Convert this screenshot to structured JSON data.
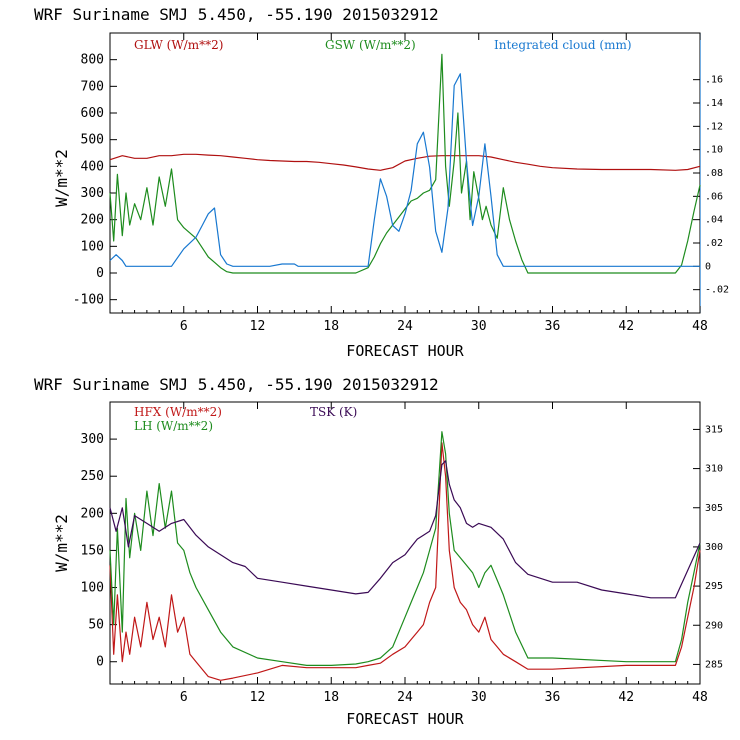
{
  "chart_data": [
    {
      "type": "line",
      "title": "WRF  Suriname SMJ   5.450, -55.190  2015032912",
      "xlabel": "FORECAST HOUR",
      "ylabel": "W/m**2",
      "xlim": [
        0,
        48
      ],
      "ylim": [
        -150,
        900
      ],
      "x_ticks": [
        6,
        12,
        18,
        24,
        30,
        36,
        42,
        48
      ],
      "y_ticks": [
        -100,
        0,
        100,
        200,
        300,
        400,
        500,
        600,
        700,
        800
      ],
      "y2lim": [
        -0.04,
        0.2
      ],
      "y2_ticks": [
        -0.02,
        0,
        0.02,
        0.04,
        0.06,
        0.08,
        0.1,
        0.12,
        0.14,
        0.16
      ],
      "y2_tick_labels": [
        "-.02",
        "0",
        ".02",
        ".04",
        ".06",
        ".08",
        ".10",
        ".12",
        ".14",
        ".16"
      ],
      "series": [
        {
          "name": "GLW (W/m**2)",
          "color": "#b01010",
          "axis": "left",
          "x": [
            0,
            1,
            2,
            3,
            4,
            5,
            6,
            7,
            8,
            9,
            10,
            11,
            12,
            13,
            14,
            15,
            16,
            17,
            18,
            19,
            20,
            21,
            22,
            23,
            24,
            25,
            26,
            27,
            28,
            29,
            30,
            31,
            32,
            33,
            34,
            35,
            36,
            38,
            40,
            42,
            44,
            46,
            47,
            48
          ],
          "values": [
            425,
            440,
            430,
            430,
            440,
            440,
            445,
            445,
            442,
            440,
            435,
            430,
            425,
            422,
            420,
            418,
            418,
            415,
            410,
            405,
            398,
            390,
            385,
            395,
            420,
            430,
            438,
            440,
            440,
            440,
            440,
            435,
            425,
            415,
            408,
            400,
            395,
            390,
            388,
            388,
            388,
            385,
            388,
            400
          ]
        },
        {
          "name": "GSW (W/m**2)",
          "color": "#1e8c1e",
          "axis": "left",
          "x": [
            0,
            0.3,
            0.6,
            1,
            1.3,
            1.6,
            2,
            2.5,
            3,
            3.5,
            4,
            4.5,
            5,
            5.5,
            6,
            7,
            8,
            8.5,
            9,
            9.5,
            10,
            20,
            21,
            21.5,
            22,
            22.5,
            23,
            23.5,
            24,
            24.5,
            25,
            25.5,
            26,
            26.5,
            27,
            27.3,
            27.6,
            28,
            28.3,
            28.6,
            29,
            29.3,
            29.6,
            30,
            30.3,
            30.6,
            31,
            31.5,
            32,
            32.5,
            33,
            33.5,
            34,
            34.5,
            46,
            46.5,
            47,
            47.5,
            48
          ],
          "values": [
            300,
            120,
            370,
            140,
            300,
            180,
            260,
            200,
            320,
            180,
            360,
            250,
            390,
            200,
            170,
            130,
            60,
            40,
            20,
            5,
            0,
            0,
            20,
            60,
            110,
            150,
            180,
            210,
            240,
            270,
            280,
            300,
            310,
            350,
            820,
            400,
            250,
            420,
            600,
            300,
            420,
            200,
            380,
            280,
            200,
            250,
            180,
            130,
            320,
            200,
            120,
            50,
            0,
            0,
            0,
            30,
            120,
            230,
            330
          ]
        },
        {
          "name": "Integrated cloud (mm)",
          "color": "#1878d0",
          "axis": "right",
          "x": [
            0,
            0.5,
            1,
            1.3,
            1.6,
            2,
            5,
            6,
            7,
            7.5,
            8,
            8.5,
            9,
            9.5,
            10,
            13,
            14,
            15,
            15.3,
            21,
            21.5,
            22,
            22.5,
            23,
            23.5,
            24,
            24.5,
            25,
            25.5,
            26,
            26.5,
            27,
            27.5,
            28,
            28.5,
            29,
            29.5,
            30,
            30.5,
            31,
            31.5,
            32,
            48
          ],
          "values": [
            0.005,
            0.01,
            0.005,
            0,
            0,
            0,
            0,
            0.015,
            0.025,
            0.035,
            0.045,
            0.05,
            0.01,
            0.002,
            0,
            0,
            0.002,
            0.002,
            0,
            0,
            0.04,
            0.075,
            0.06,
            0.035,
            0.03,
            0.045,
            0.065,
            0.105,
            0.115,
            0.085,
            0.03,
            0.012,
            0.05,
            0.155,
            0.165,
            0.09,
            0.035,
            0.06,
            0.105,
            0.06,
            0.01,
            0,
            0
          ]
        }
      ],
      "legend": [
        "GLW (W/m**2)",
        "GSW (W/m**2)",
        "Integrated cloud (mm)"
      ]
    },
    {
      "type": "line",
      "title": "WRF  Suriname SMJ   5.450, -55.190  2015032912",
      "xlabel": "FORECAST HOUR",
      "ylabel": "W/m**2",
      "xlim": [
        0,
        48
      ],
      "ylim": [
        -30,
        350
      ],
      "x_ticks": [
        6,
        12,
        18,
        24,
        30,
        36,
        42,
        48
      ],
      "y_ticks": [
        0,
        50,
        100,
        150,
        200,
        250,
        300
      ],
      "y2lim": [
        282.5,
        318.5
      ],
      "y2_ticks": [
        285,
        290,
        295,
        300,
        305,
        310,
        315
      ],
      "y2_tick_labels": [
        "285",
        "290",
        "295",
        "300",
        "305",
        "310",
        "315"
      ],
      "series": [
        {
          "name": "HFX (W/m**2)",
          "color": "#c01818",
          "axis": "left",
          "x": [
            0,
            0.3,
            0.6,
            1,
            1.3,
            1.6,
            2,
            2.5,
            3,
            3.5,
            4,
            4.5,
            5,
            5.5,
            6,
            6.5,
            7,
            8,
            9,
            10,
            12,
            14,
            16,
            18,
            20,
            21,
            22,
            23,
            24,
            24.5,
            25,
            25.5,
            26,
            26.5,
            27,
            27.3,
            27.6,
            28,
            28.5,
            29,
            29.5,
            30,
            30.5,
            31,
            31.5,
            32,
            33,
            34,
            36,
            42,
            46,
            46.5,
            47,
            47.5,
            48
          ],
          "values": [
            130,
            10,
            90,
            0,
            40,
            10,
            60,
            20,
            80,
            30,
            60,
            20,
            90,
            40,
            60,
            10,
            0,
            -20,
            -25,
            -22,
            -15,
            -5,
            -8,
            -8,
            -8,
            -5,
            -2,
            10,
            20,
            30,
            40,
            50,
            80,
            100,
            295,
            250,
            150,
            100,
            80,
            70,
            50,
            40,
            60,
            30,
            20,
            10,
            0,
            -10,
            -10,
            -5,
            -5,
            20,
            60,
            100,
            150
          ]
        },
        {
          "name": "LH (W/m**2)",
          "color": "#1e8c1e",
          "axis": "left",
          "x": [
            0,
            0.3,
            0.6,
            1,
            1.3,
            1.6,
            2,
            2.5,
            3,
            3.5,
            4,
            4.5,
            5,
            5.5,
            6,
            6.5,
            7,
            8,
            9,
            10,
            12,
            14,
            16,
            18,
            20,
            21,
            22,
            23,
            24,
            24.5,
            25,
            25.5,
            26,
            26.5,
            27,
            27.3,
            27.6,
            28,
            28.5,
            29,
            29.5,
            30,
            30.5,
            31,
            31.5,
            32,
            33,
            34,
            36,
            42,
            46,
            46.5,
            47,
            47.5,
            48
          ],
          "values": [
            150,
            50,
            180,
            40,
            220,
            140,
            200,
            150,
            230,
            170,
            240,
            180,
            230,
            160,
            150,
            120,
            100,
            70,
            40,
            20,
            5,
            0,
            -5,
            -5,
            -3,
            0,
            5,
            20,
            60,
            80,
            100,
            120,
            150,
            180,
            310,
            280,
            200,
            150,
            140,
            130,
            120,
            100,
            120,
            130,
            110,
            90,
            40,
            5,
            5,
            0,
            0,
            30,
            80,
            120,
            160
          ]
        },
        {
          "name": "TSK (K)",
          "color": "#3a0a55",
          "axis": "right",
          "x": [
            0,
            0.5,
            1,
            1.5,
            2,
            3,
            4,
            5,
            6,
            7,
            8,
            9,
            10,
            11,
            12,
            14,
            16,
            18,
            20,
            21,
            22,
            23,
            24,
            24.5,
            25,
            25.5,
            26,
            26.5,
            27,
            27.3,
            27.6,
            28,
            28.5,
            29,
            29.5,
            30,
            31,
            32,
            33,
            34,
            36,
            38,
            40,
            42,
            44,
            46,
            47,
            48
          ],
          "values": [
            305,
            302,
            305,
            300,
            304,
            303,
            302,
            303,
            303.5,
            301.5,
            300,
            299,
            298,
            297.5,
            296,
            295.5,
            295,
            294.5,
            294,
            294.2,
            296,
            298,
            299,
            300,
            301,
            301.5,
            302,
            304,
            310.5,
            311,
            308,
            306,
            305,
            303,
            302.5,
            303,
            302.5,
            301,
            298,
            296.5,
            295.5,
            295.5,
            294.5,
            294,
            293.5,
            293.5,
            297,
            300.5
          ]
        }
      ],
      "legend": [
        "HFX (W/m**2)",
        "LH (W/m**2)",
        "TSK (K)"
      ]
    }
  ]
}
